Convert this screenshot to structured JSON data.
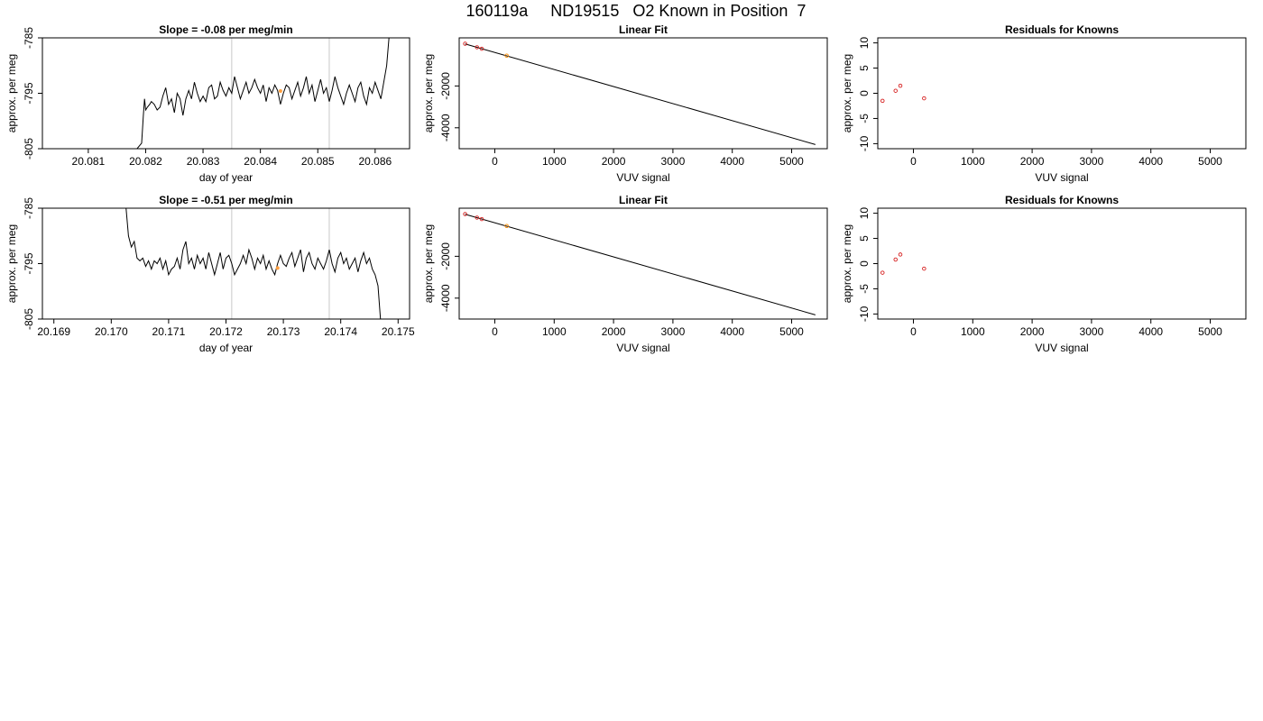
{
  "page": {
    "title": "160119a     ND19515   O2 Known in Position  7"
  },
  "chart_data": [
    {
      "type": "line",
      "title": "Slope =  -0.08  per meg/min",
      "xlabel": "day of year",
      "ylabel": "approx. per meg",
      "xlim": [
        20.0802,
        20.0866
      ],
      "ylim": [
        -805,
        -785
      ],
      "xticks": [
        "20.081",
        "20.082",
        "20.083",
        "20.084",
        "20.085",
        "20.086"
      ],
      "yticks": [
        "-785",
        "-795",
        "-805"
      ],
      "vlines": [
        20.0835,
        20.0852
      ],
      "highlight": {
        "x": 20.08435,
        "y": -794.6
      },
      "series": [
        {
          "x": [
            20.08185,
            20.08193,
            20.08196,
            20.08198,
            20.082,
            20.08203,
            20.08207,
            20.0821,
            20.08215,
            20.0822,
            20.08225,
            20.0823,
            20.08235,
            20.0824,
            20.08245,
            20.0825,
            20.08255,
            20.0826,
            20.08265,
            20.0827,
            20.08275,
            20.0828,
            20.08285,
            20.0829,
            20.08295,
            20.083,
            20.08305,
            20.0831,
            20.08315,
            20.0832,
            20.08325,
            20.0833,
            20.08335,
            20.0834,
            20.08345,
            20.0835,
            20.08355,
            20.0836,
            20.08365,
            20.0837,
            20.08375,
            20.0838,
            20.08385,
            20.0839,
            20.08395,
            20.084,
            20.08405,
            20.0841,
            20.08415,
            20.0842,
            20.08425,
            20.0843,
            20.08435,
            20.0844,
            20.08445,
            20.0845,
            20.08455,
            20.0846,
            20.08465,
            20.0847,
            20.08475,
            20.0848,
            20.08485,
            20.0849,
            20.08495,
            20.085,
            20.08505,
            20.0851,
            20.08515,
            20.0852,
            20.08525,
            20.0853,
            20.08535,
            20.0854,
            20.08545,
            20.0855,
            20.08555,
            20.0856,
            20.08565,
            20.0857,
            20.08575,
            20.0858,
            20.08585,
            20.0859,
            20.08595,
            20.086,
            20.08605,
            20.0861,
            20.08615,
            20.0862,
            20.08625
          ],
          "y": [
            -805,
            -804,
            -799,
            -796,
            -798,
            -797.5,
            -797,
            -796.5,
            -797,
            -798,
            -797.5,
            -795.5,
            -794,
            -797,
            -796,
            -798.5,
            -795,
            -796,
            -799,
            -796,
            -794.5,
            -796,
            -793,
            -795,
            -796.5,
            -795.5,
            -796.5,
            -794,
            -793.5,
            -796,
            -795.5,
            -793,
            -794.5,
            -795.5,
            -794,
            -795,
            -792,
            -794,
            -796,
            -794.5,
            -793,
            -795,
            -794,
            -792.5,
            -794,
            -795,
            -793.5,
            -796.5,
            -794,
            -795,
            -793.5,
            -794.5,
            -797,
            -795,
            -793.5,
            -794,
            -796,
            -794.5,
            -793,
            -795.5,
            -794,
            -792,
            -795,
            -793.5,
            -796.5,
            -794.5,
            -792.5,
            -795,
            -794,
            -796.5,
            -794.5,
            -792,
            -794,
            -795.5,
            -797,
            -795,
            -793.5,
            -795,
            -796.5,
            -794,
            -793,
            -795.5,
            -797,
            -794,
            -795,
            -793,
            -794.5,
            -796,
            -793,
            -790,
            -784
          ]
        }
      ]
    },
    {
      "type": "scatter",
      "title": "Linear Fit",
      "xlabel": "VUV signal",
      "ylabel": "approx. per meg",
      "xlim": [
        -600,
        5600
      ],
      "ylim": [
        -5000,
        300
      ],
      "xticks": [
        "0",
        "1000",
        "2000",
        "3000",
        "4000",
        "5000"
      ],
      "yticks": [
        "-2000",
        "-4000"
      ],
      "fit_line": [
        [
          -500,
          10
        ],
        [
          5400,
          -4800
        ]
      ],
      "points": [
        [
          -500,
          20
        ],
        [
          -300,
          -150
        ],
        [
          -220,
          -220
        ],
        [
          200,
          -550
        ]
      ],
      "highlight_index": 3
    },
    {
      "type": "scatter",
      "title": "Residuals for Knowns",
      "xlabel": "VUV signal",
      "ylabel": "approx. per meg",
      "xlim": [
        -600,
        5600
      ],
      "ylim": [
        -11,
        11
      ],
      "xticks": [
        "0",
        "1000",
        "2000",
        "3000",
        "4000",
        "5000"
      ],
      "yticks": [
        "-10",
        "-5",
        "0",
        "5",
        "10"
      ],
      "points": [
        [
          -520,
          -1.5
        ],
        [
          -300,
          0.5
        ],
        [
          -220,
          1.5
        ],
        [
          180,
          -1.0
        ]
      ]
    },
    {
      "type": "line",
      "title": "Slope =  -0.51  per meg/min",
      "xlabel": "day of year",
      "ylabel": "approx. per meg",
      "xlim": [
        20.1688,
        20.1752
      ],
      "ylim": [
        -805,
        -785
      ],
      "xticks": [
        "20.169",
        "20.170",
        "20.171",
        "20.172",
        "20.173",
        "20.174",
        "20.175"
      ],
      "yticks": [
        "-785",
        "-795",
        "-805"
      ],
      "vlines": [
        20.1721,
        20.1738
      ],
      "highlight": {
        "x": 20.1729,
        "y": -795.8
      },
      "series": [
        {
          "x": [
            20.17025,
            20.1703,
            20.17035,
            20.1704,
            20.17045,
            20.1705,
            20.17055,
            20.1706,
            20.17065,
            20.1707,
            20.17075,
            20.1708,
            20.17085,
            20.1709,
            20.17095,
            20.171,
            20.17105,
            20.1711,
            20.17115,
            20.1712,
            20.17125,
            20.1713,
            20.17135,
            20.1714,
            20.17145,
            20.1715,
            20.17155,
            20.1716,
            20.17165,
            20.1717,
            20.17175,
            20.1718,
            20.17185,
            20.1719,
            20.17195,
            20.172,
            20.17205,
            20.1721,
            20.17215,
            20.1722,
            20.17225,
            20.1723,
            20.17235,
            20.1724,
            20.17245,
            20.1725,
            20.17255,
            20.1726,
            20.17265,
            20.1727,
            20.17275,
            20.1728,
            20.17285,
            20.1729,
            20.17295,
            20.173,
            20.17305,
            20.1731,
            20.17315,
            20.1732,
            20.17325,
            20.1733,
            20.17335,
            20.1734,
            20.17345,
            20.1735,
            20.17355,
            20.1736,
            20.17365,
            20.1737,
            20.17375,
            20.1738,
            20.17385,
            20.1739,
            20.17395,
            20.174,
            20.17405,
            20.1741,
            20.17415,
            20.1742,
            20.17425,
            20.1743,
            20.17435,
            20.1744,
            20.17445,
            20.1745,
            20.17455,
            20.1746,
            20.17465,
            20.1747
          ],
          "y": [
            -784,
            -790,
            -792,
            -791,
            -794,
            -794.5,
            -794,
            -795.5,
            -794.5,
            -796,
            -794.5,
            -795,
            -794,
            -796,
            -794.5,
            -797,
            -796,
            -795.5,
            -794,
            -796,
            -792.5,
            -791,
            -795,
            -794,
            -796,
            -793.5,
            -795,
            -794,
            -796,
            -793,
            -795,
            -797,
            -795,
            -793,
            -796,
            -794,
            -793.5,
            -795,
            -797,
            -796,
            -795,
            -793.5,
            -795,
            -792.5,
            -794,
            -796,
            -794,
            -795,
            -793.5,
            -796,
            -794.5,
            -796,
            -797,
            -795,
            -793.5,
            -795,
            -795.5,
            -794,
            -793,
            -795.5,
            -794,
            -792.5,
            -796.5,
            -794,
            -793,
            -795,
            -796,
            -794,
            -795,
            -796,
            -794.5,
            -792.5,
            -795,
            -796.5,
            -794,
            -793,
            -795,
            -794,
            -796,
            -795,
            -794,
            -796.5,
            -794.5,
            -793,
            -795,
            -794,
            -796,
            -797,
            -799,
            -806
          ]
        }
      ]
    },
    {
      "type": "scatter",
      "title": "Linear Fit",
      "xlabel": "VUV signal",
      "ylabel": "approx. per meg",
      "xlim": [
        -600,
        5600
      ],
      "ylim": [
        -5000,
        300
      ],
      "xticks": [
        "0",
        "1000",
        "2000",
        "3000",
        "4000",
        "5000"
      ],
      "yticks": [
        "-2000",
        "-4000"
      ],
      "fit_line": [
        [
          -500,
          10
        ],
        [
          5400,
          -4800
        ]
      ],
      "points": [
        [
          -500,
          20
        ],
        [
          -300,
          -150
        ],
        [
          -220,
          -220
        ],
        [
          200,
          -550
        ]
      ],
      "highlight_index": 3
    },
    {
      "type": "scatter",
      "title": "Residuals for Knowns",
      "xlabel": "VUV signal",
      "ylabel": "approx. per meg",
      "xlim": [
        -600,
        5600
      ],
      "ylim": [
        -11,
        11
      ],
      "xticks": [
        "0",
        "1000",
        "2000",
        "3000",
        "4000",
        "5000"
      ],
      "yticks": [
        "-10",
        "-5",
        "0",
        "5",
        "10"
      ],
      "points": [
        [
          -520,
          -1.8
        ],
        [
          -300,
          0.8
        ],
        [
          -220,
          1.8
        ],
        [
          180,
          -1.0
        ]
      ]
    }
  ]
}
